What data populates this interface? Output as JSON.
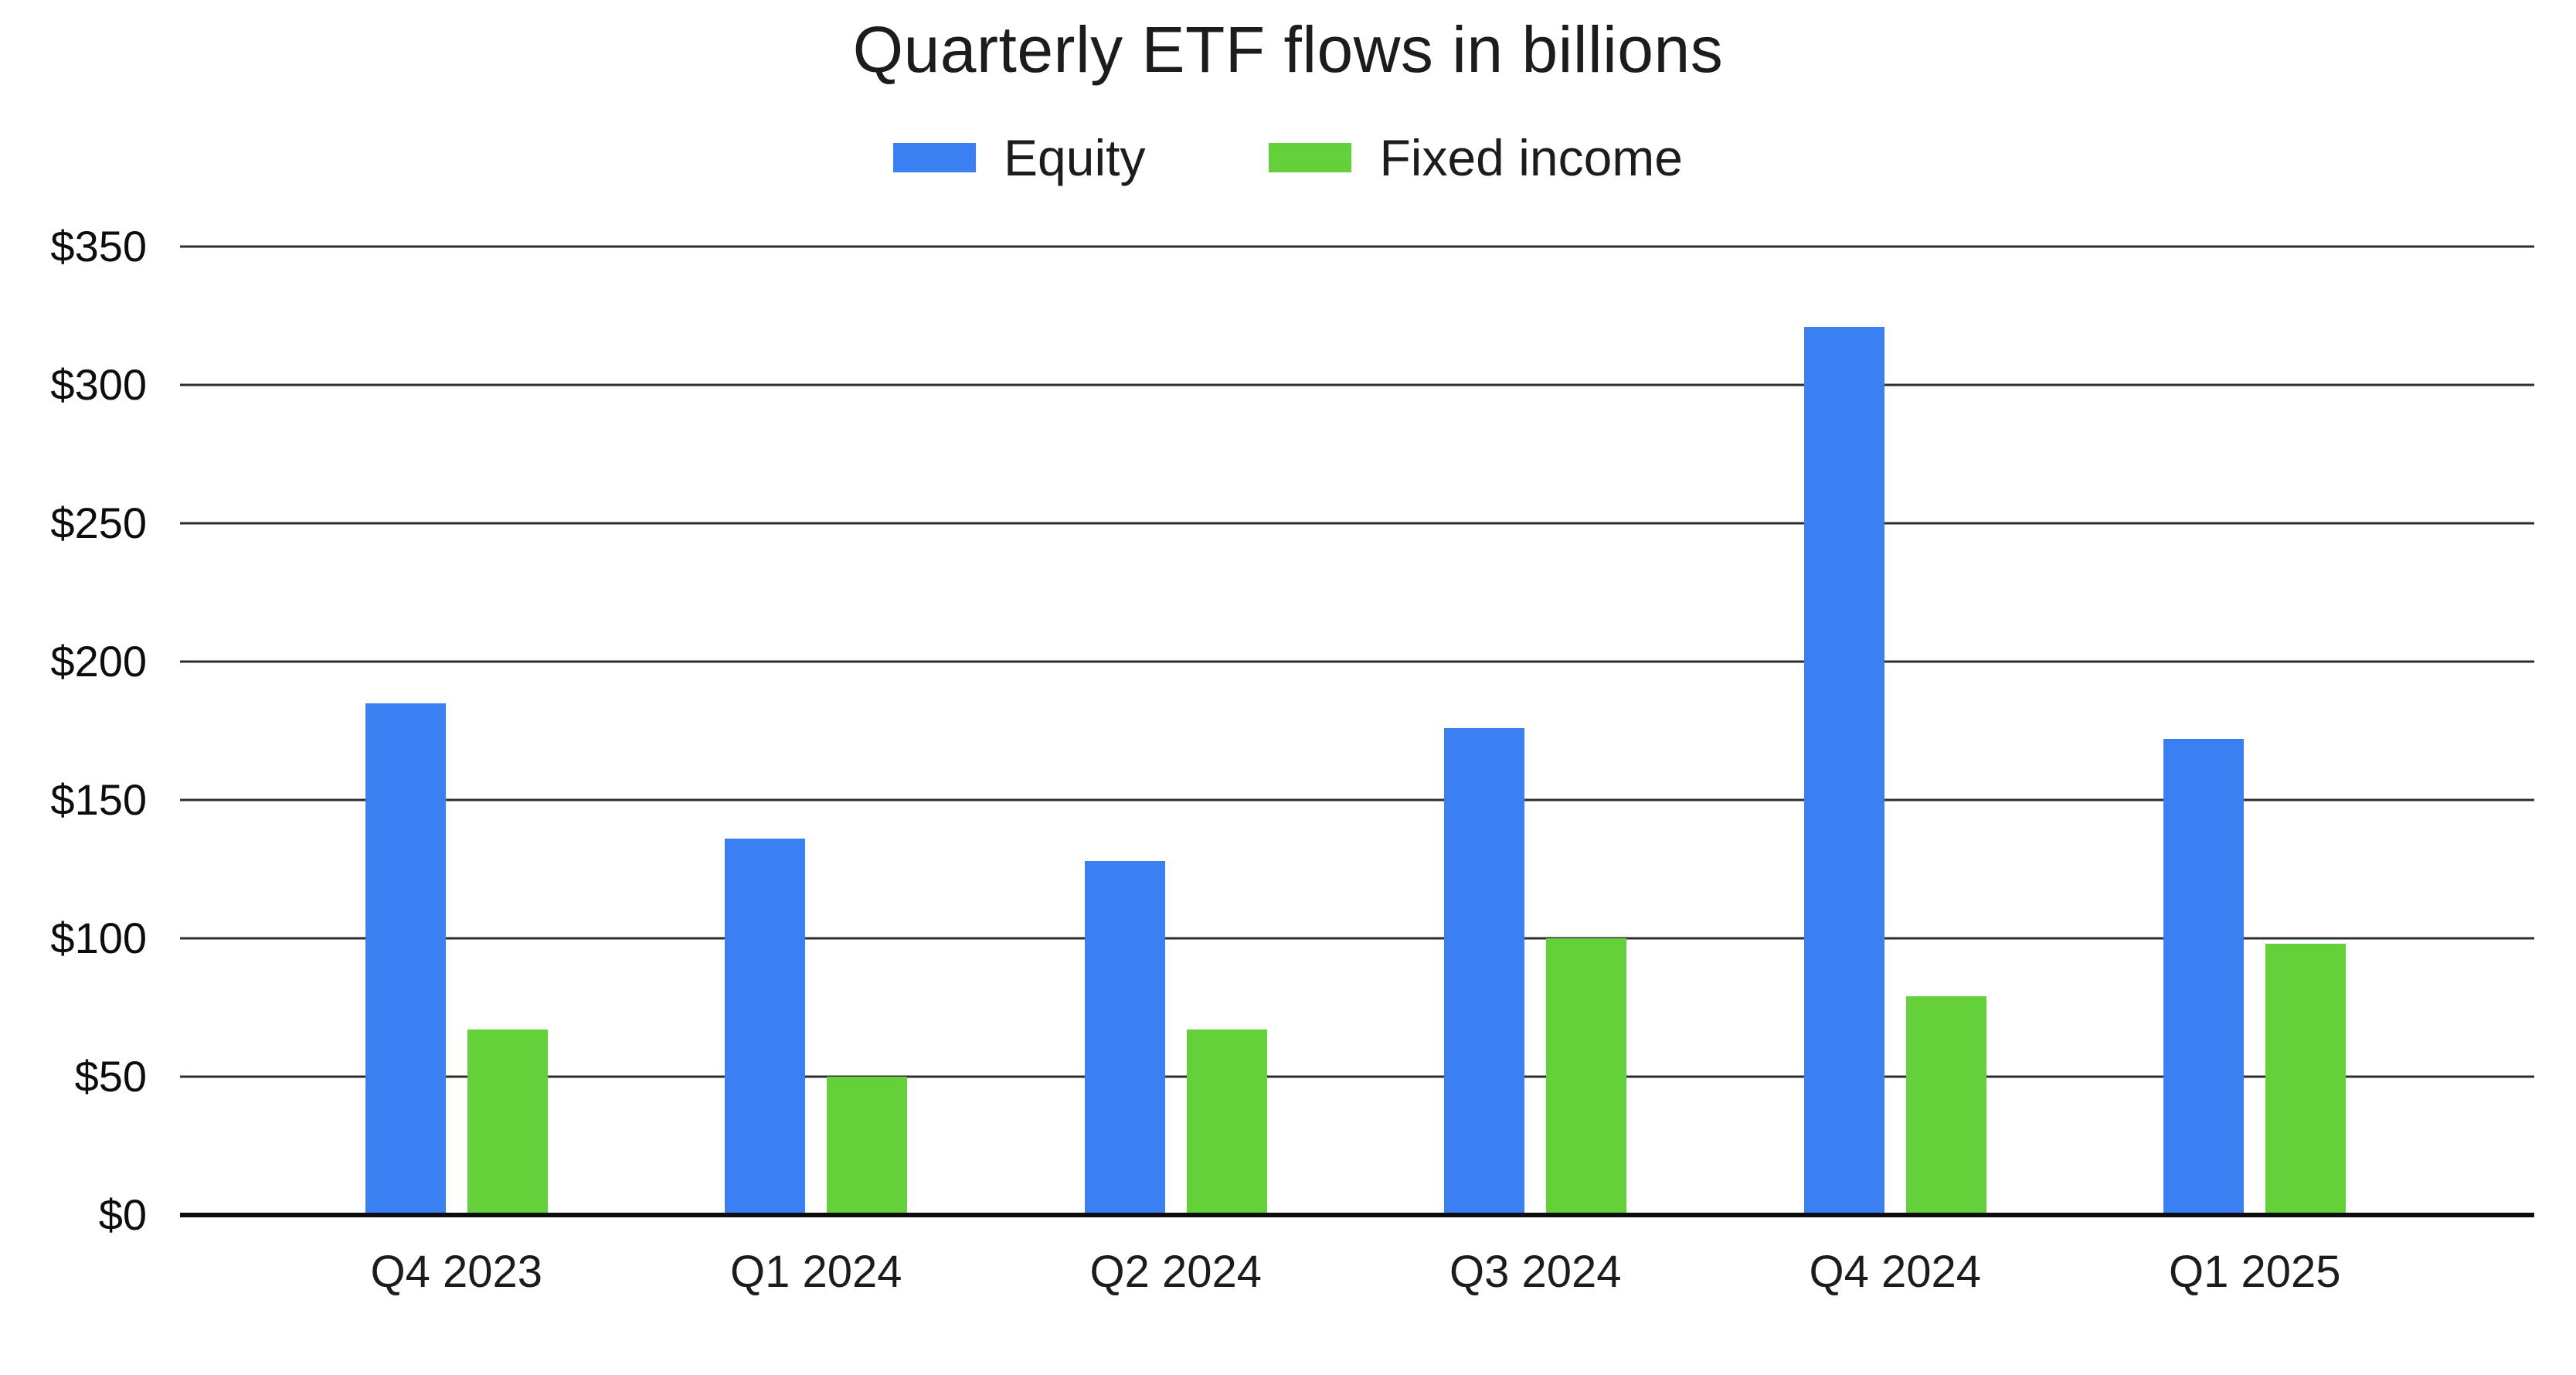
{
  "page": {
    "background_color": "#ffffff"
  },
  "chart_data": {
    "type": "bar",
    "title": "Quarterly ETF flows in billions",
    "categories": [
      "Q4 2023",
      "Q1 2024",
      "Q2 2024",
      "Q3 2024",
      "Q4 2024",
      "Q1 2025"
    ],
    "series": [
      {
        "name": "Equity",
        "color": "#3B80F3",
        "values": [
          185,
          136,
          128,
          176,
          321,
          172
        ]
      },
      {
        "name": "Fixed income",
        "color": "#65D13A",
        "values": [
          67,
          50,
          67,
          100,
          79,
          98
        ]
      }
    ],
    "xlabel": "",
    "ylabel": "",
    "ylim": [
      0,
      350
    ],
    "ytick_step": 50,
    "ytick_prefix": "$",
    "ytick_labels_top_to_bottom": [
      "$350",
      "$300",
      "$250",
      "$200",
      "$150",
      "$100",
      "$50",
      "$0"
    ],
    "grid": true,
    "legend_position": "top",
    "gridline_color": "#2d2d2d",
    "axis_line_color": "#0d0d0d",
    "text_color": "#1c1c1c"
  }
}
